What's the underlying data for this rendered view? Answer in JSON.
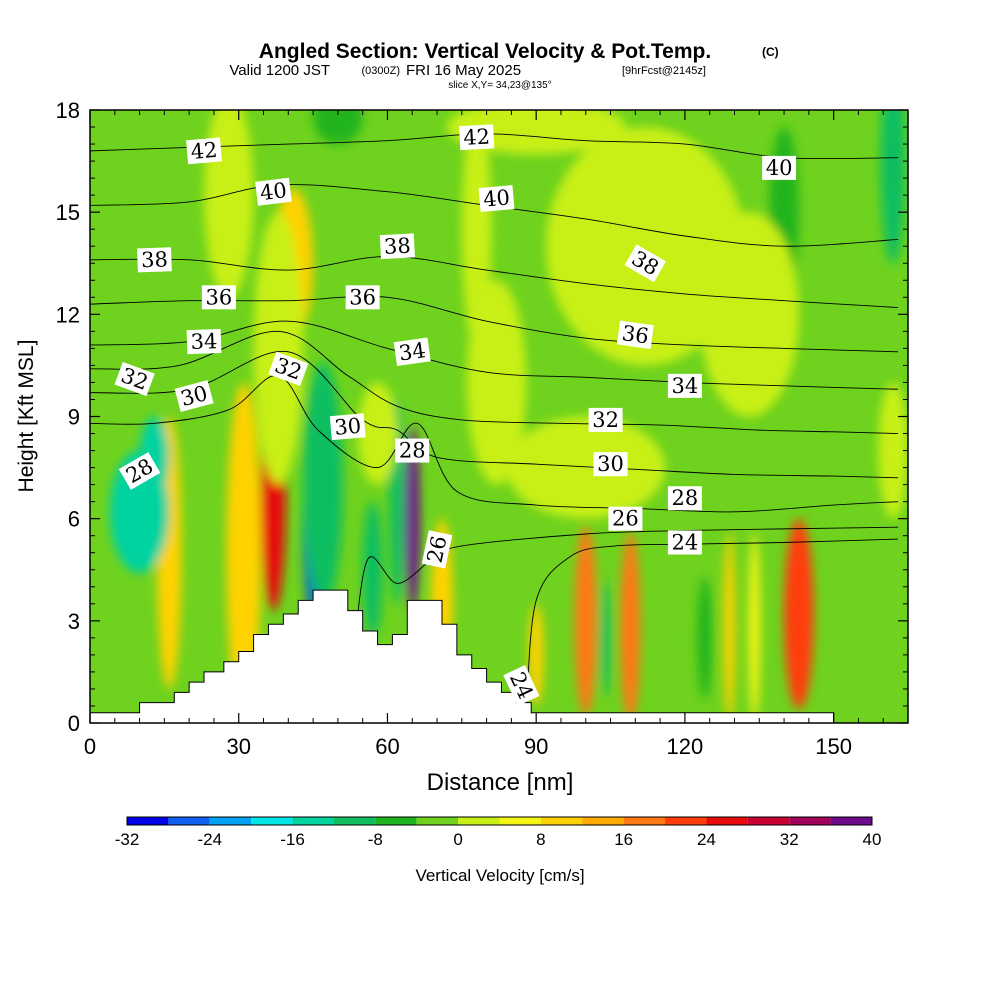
{
  "header": {
    "title": "Angled Section: Vertical Velocity & Pot.Temp.",
    "title_mark": "(C)",
    "subtitle_lead": "Valid 1200 JST",
    "subtitle_zulu": "(0300Z)",
    "subtitle_date": "FRI 16 May 2025",
    "subtitle_fcst": "[9hrFcst@2145z]",
    "slice": "slice X,Y= 34,23@135°"
  },
  "chart_data": {
    "type": "heatmap",
    "title": "Angled Section: Vertical Velocity & Pot.Temp.",
    "xlabel": "Distance [nm]",
    "ylabel": "Height [Kft MSL]",
    "xlim": [
      0,
      165
    ],
    "ylim": [
      0,
      18
    ],
    "x_ticks": [
      0,
      30,
      60,
      90,
      120,
      150
    ],
    "y_ticks": [
      0,
      3,
      6,
      9,
      12,
      15,
      18
    ],
    "colorbar": {
      "label": "Vertical Velocity [cm/s]",
      "ticks": [
        -32,
        -24,
        -16,
        -8,
        0,
        8,
        16,
        24,
        32,
        40
      ],
      "levels": [
        -32,
        -28,
        -24,
        -20,
        -16,
        -12,
        -8,
        -4,
        0,
        4,
        8,
        12,
        16,
        20,
        24,
        28,
        32,
        36,
        40
      ],
      "colors": [
        "#0000e6",
        "#1060f0",
        "#00a0f5",
        "#00e6e6",
        "#00d2a0",
        "#10be60",
        "#20b41e",
        "#6ed21e",
        "#c8f014",
        "#f5f514",
        "#ffd200",
        "#ffaa00",
        "#ff7814",
        "#ff3c0a",
        "#e60a0a",
        "#c80032",
        "#a0005a",
        "#6e0a8c"
      ]
    },
    "base_velocity": -2,
    "cells": [
      {
        "x": 37,
        "y": 6.5,
        "rx": 2.5,
        "ry": 3.2,
        "v": 27
      },
      {
        "x": 31,
        "y": 5.0,
        "rx": 3.5,
        "ry": 5.0,
        "v": 8
      },
      {
        "x": 16,
        "y": 5.0,
        "rx": 2.5,
        "ry": 4.0,
        "v": 8
      },
      {
        "x": 45,
        "y": 6.0,
        "rx": 2.0,
        "ry": 2.7,
        "v": -34
      },
      {
        "x": 47,
        "y": 7.0,
        "rx": 4.0,
        "ry": 3.6,
        "v": -12
      },
      {
        "x": 65,
        "y": 6.0,
        "rx": 1.5,
        "ry": 2.7,
        "v": 36
      },
      {
        "x": 62,
        "y": 6.5,
        "rx": 1.6,
        "ry": 3.0,
        "v": -11
      },
      {
        "x": 57,
        "y": 4.5,
        "rx": 2.0,
        "ry": 2.0,
        "v": -9
      },
      {
        "x": 71,
        "y": 3.5,
        "rx": 2.2,
        "ry": 2.5,
        "v": 8
      },
      {
        "x": 100,
        "y": 3.0,
        "rx": 2.2,
        "ry": 2.8,
        "v": 17
      },
      {
        "x": 109,
        "y": 2.8,
        "rx": 2.0,
        "ry": 2.8,
        "v": 16
      },
      {
        "x": 104,
        "y": 2.5,
        "rx": 1.0,
        "ry": 1.7,
        "v": -10
      },
      {
        "x": 90,
        "y": 2.0,
        "rx": 1.5,
        "ry": 1.5,
        "v": 8
      },
      {
        "x": 129,
        "y": 2.8,
        "rx": 1.2,
        "ry": 2.8,
        "v": 8
      },
      {
        "x": 134,
        "y": 2.8,
        "rx": 1.2,
        "ry": 2.8,
        "v": 7
      },
      {
        "x": 143,
        "y": 3.2,
        "rx": 3.0,
        "ry": 2.8,
        "v": 23
      },
      {
        "x": 124,
        "y": 2.5,
        "rx": 1.5,
        "ry": 1.8,
        "v": -8
      },
      {
        "x": 10,
        "y": 6.2,
        "rx": 6.0,
        "ry": 1.8,
        "v": -13
      },
      {
        "x": 13,
        "y": 7.8,
        "rx": 3.0,
        "ry": 1.2,
        "v": -14
      },
      {
        "x": 41,
        "y": 13.5,
        "rx": 4.0,
        "ry": 2.2,
        "v": 9
      },
      {
        "x": 38,
        "y": 11.0,
        "rx": 5.0,
        "ry": 4.0,
        "v": 3
      },
      {
        "x": 58,
        "y": 8.5,
        "rx": 4.0,
        "ry": 1.5,
        "v": 3
      },
      {
        "x": 82,
        "y": 10.0,
        "rx": 6.0,
        "ry": 3.0,
        "v": 3
      },
      {
        "x": 78,
        "y": 14.5,
        "rx": 3.0,
        "ry": 3.5,
        "v": 3
      },
      {
        "x": 112,
        "y": 14.0,
        "rx": 20.0,
        "ry": 3.5,
        "v": 2
      },
      {
        "x": 140,
        "y": 15.0,
        "rx": 3.0,
        "ry": 2.5,
        "v": -8
      },
      {
        "x": 133,
        "y": 12.0,
        "rx": 10.0,
        "ry": 3.0,
        "v": 2
      },
      {
        "x": 100,
        "y": 7.5,
        "rx": 16.0,
        "ry": 1.5,
        "v": 2
      },
      {
        "x": 90,
        "y": 17.5,
        "rx": 18.0,
        "ry": 0.8,
        "v": 0
      },
      {
        "x": 162,
        "y": 16.5,
        "rx": 2.5,
        "ry": 3.0,
        "v": -10
      },
      {
        "x": 50,
        "y": 17.8,
        "rx": 5.0,
        "ry": 0.8,
        "v": -8
      },
      {
        "x": 28,
        "y": 15.5,
        "rx": 5.0,
        "ry": 3.0,
        "v": 1
      },
      {
        "x": 162,
        "y": 8.0,
        "rx": 3.0,
        "ry": 2.0,
        "v": 3
      }
    ],
    "isentropes": [
      {
        "theta": 24,
        "points": [
          [
            88,
            0.3
          ],
          [
            90,
            3.6
          ],
          [
            97,
            4.9
          ],
          [
            106,
            5.2
          ],
          [
            120,
            5.25
          ],
          [
            140,
            5.3
          ],
          [
            163,
            5.4
          ]
        ]
      },
      {
        "theta": 26,
        "points": [
          [
            53,
            1.8
          ],
          [
            56,
            4.8
          ],
          [
            62,
            4.1
          ],
          [
            69,
            4.8
          ],
          [
            75,
            5.2
          ],
          [
            100,
            5.55
          ],
          [
            120,
            5.65
          ],
          [
            140,
            5.7
          ],
          [
            163,
            5.75
          ]
        ]
      },
      {
        "theta": 28,
        "points": [
          [
            0,
            8.8
          ],
          [
            13,
            8.8
          ],
          [
            28,
            9.2
          ],
          [
            38,
            10.2
          ],
          [
            46,
            8.6
          ],
          [
            58,
            7.5
          ],
          [
            66,
            8.8
          ],
          [
            74,
            6.8
          ],
          [
            90,
            6.4
          ],
          [
            110,
            6.3
          ],
          [
            130,
            6.2
          ],
          [
            150,
            6.4
          ],
          [
            163,
            6.5
          ]
        ]
      },
      {
        "theta": 30,
        "points": [
          [
            0,
            9.7
          ],
          [
            20,
            9.8
          ],
          [
            40,
            10.9
          ],
          [
            55,
            8.9
          ],
          [
            62,
            8.6
          ],
          [
            70,
            7.8
          ],
          [
            90,
            7.6
          ],
          [
            110,
            7.45
          ],
          [
            130,
            7.3
          ],
          [
            150,
            7.25
          ],
          [
            163,
            7.2
          ]
        ]
      },
      {
        "theta": 32,
        "points": [
          [
            0,
            10.4
          ],
          [
            18,
            10.5
          ],
          [
            38,
            11.5
          ],
          [
            52,
            10.2
          ],
          [
            62,
            9.3
          ],
          [
            75,
            8.9
          ],
          [
            95,
            8.8
          ],
          [
            115,
            8.75
          ],
          [
            135,
            8.6
          ],
          [
            150,
            8.55
          ],
          [
            163,
            8.5
          ]
        ]
      },
      {
        "theta": 34,
        "points": [
          [
            0,
            11.1
          ],
          [
            20,
            11.2
          ],
          [
            40,
            11.8
          ],
          [
            60,
            11.0
          ],
          [
            80,
            10.3
          ],
          [
            100,
            10.15
          ],
          [
            120,
            10.0
          ],
          [
            140,
            9.9
          ],
          [
            163,
            9.8
          ]
        ]
      },
      {
        "theta": 36,
        "points": [
          [
            0,
            12.3
          ],
          [
            20,
            12.4
          ],
          [
            40,
            12.4
          ],
          [
            60,
            12.5
          ],
          [
            80,
            11.8
          ],
          [
            100,
            11.3
          ],
          [
            120,
            11.1
          ],
          [
            140,
            11.0
          ],
          [
            163,
            10.9
          ]
        ]
      },
      {
        "theta": 38,
        "points": [
          [
            0,
            13.6
          ],
          [
            20,
            13.6
          ],
          [
            40,
            13.3
          ],
          [
            60,
            13.7
          ],
          [
            80,
            13.3
          ],
          [
            100,
            12.9
          ],
          [
            120,
            12.6
          ],
          [
            140,
            12.4
          ],
          [
            163,
            12.2
          ]
        ]
      },
      {
        "theta": 40,
        "points": [
          [
            0,
            15.2
          ],
          [
            20,
            15.3
          ],
          [
            38,
            15.8
          ],
          [
            60,
            15.6
          ],
          [
            80,
            15.2
          ],
          [
            100,
            14.8
          ],
          [
            120,
            14.3
          ],
          [
            140,
            14.0
          ],
          [
            163,
            14.2
          ]
        ]
      },
      {
        "theta": 42,
        "points": [
          [
            0,
            16.8
          ],
          [
            20,
            16.9
          ],
          [
            40,
            17.0
          ],
          [
            60,
            17.1
          ],
          [
            80,
            17.3
          ],
          [
            100,
            17.1
          ],
          [
            120,
            17.0
          ],
          [
            140,
            16.6
          ],
          [
            163,
            16.6
          ]
        ]
      }
    ],
    "terrain": [
      [
        0,
        0.3
      ],
      [
        5,
        0.3
      ],
      [
        10,
        0.3
      ],
      [
        10,
        0.6
      ],
      [
        17,
        0.6
      ],
      [
        17,
        0.9
      ],
      [
        20,
        0.9
      ],
      [
        20,
        1.2
      ],
      [
        23,
        1.2
      ],
      [
        23,
        1.5
      ],
      [
        27,
        1.5
      ],
      [
        27,
        1.8
      ],
      [
        30,
        1.8
      ],
      [
        30,
        2.1
      ],
      [
        33,
        2.1
      ],
      [
        33,
        2.6
      ],
      [
        36,
        2.6
      ],
      [
        36,
        2.9
      ],
      [
        39,
        2.9
      ],
      [
        39,
        3.2
      ],
      [
        42,
        3.2
      ],
      [
        42,
        3.6
      ],
      [
        45,
        3.6
      ],
      [
        45,
        3.9
      ],
      [
        52,
        3.9
      ],
      [
        52,
        3.3
      ],
      [
        55,
        3.3
      ],
      [
        55,
        2.7
      ],
      [
        58,
        2.7
      ],
      [
        58,
        2.3
      ],
      [
        61,
        2.3
      ],
      [
        61,
        2.6
      ],
      [
        64,
        2.6
      ],
      [
        64,
        3.6
      ],
      [
        71,
        3.6
      ],
      [
        71,
        2.9
      ],
      [
        74,
        2.9
      ],
      [
        74,
        2.0
      ],
      [
        77,
        2.0
      ],
      [
        77,
        1.6
      ],
      [
        80,
        1.6
      ],
      [
        80,
        1.2
      ],
      [
        83,
        1.2
      ],
      [
        83,
        0.9
      ],
      [
        86,
        0.9
      ],
      [
        86,
        0.6
      ],
      [
        89,
        0.6
      ],
      [
        89,
        0.3
      ],
      [
        150,
        0.3
      ],
      [
        150,
        0.0
      ],
      [
        165,
        0.0
      ]
    ],
    "contour_labels": [
      {
        "text": "42",
        "x": 23,
        "y": 16.8,
        "rot": -5
      },
      {
        "text": "42",
        "x": 78,
        "y": 17.2,
        "rot": -3
      },
      {
        "text": "40",
        "x": 139,
        "y": 16.3,
        "rot": 0
      },
      {
        "text": "40",
        "x": 37,
        "y": 15.6,
        "rot": -7
      },
      {
        "text": "40",
        "x": 82,
        "y": 15.4,
        "rot": -5
      },
      {
        "text": "38",
        "x": 13,
        "y": 13.6,
        "rot": -2
      },
      {
        "text": "38",
        "x": 62,
        "y": 14.0,
        "rot": -3
      },
      {
        "text": "38",
        "x": 112,
        "y": 13.5,
        "rot": 30
      },
      {
        "text": "36",
        "x": 26,
        "y": 12.5,
        "rot": 0
      },
      {
        "text": "36",
        "x": 55,
        "y": 12.5,
        "rot": 0
      },
      {
        "text": "36",
        "x": 110,
        "y": 11.4,
        "rot": 8
      },
      {
        "text": "34",
        "x": 23,
        "y": 11.2,
        "rot": -2
      },
      {
        "text": "34",
        "x": 65,
        "y": 10.9,
        "rot": -8
      },
      {
        "text": "34",
        "x": 120,
        "y": 9.9,
        "rot": 0
      },
      {
        "text": "32",
        "x": 9,
        "y": 10.1,
        "rot": 20
      },
      {
        "text": "32",
        "x": 40,
        "y": 10.4,
        "rot": 20
      },
      {
        "text": "32",
        "x": 104,
        "y": 8.9,
        "rot": 0
      },
      {
        "text": "30",
        "x": 21,
        "y": 9.6,
        "rot": -15
      },
      {
        "text": "30",
        "x": 52,
        "y": 8.7,
        "rot": -5
      },
      {
        "text": "30",
        "x": 105,
        "y": 7.6,
        "rot": 0
      },
      {
        "text": "28",
        "x": 10,
        "y": 7.4,
        "rot": -30
      },
      {
        "text": "28",
        "x": 65,
        "y": 8.0,
        "rot": 0
      },
      {
        "text": "28",
        "x": 120,
        "y": 6.6,
        "rot": 0
      },
      {
        "text": "26",
        "x": 70,
        "y": 5.1,
        "rot": -78
      },
      {
        "text": "26",
        "x": 108,
        "y": 6.0,
        "rot": 0
      },
      {
        "text": "24",
        "x": 120,
        "y": 5.3,
        "rot": 0
      },
      {
        "text": "24",
        "x": 87,
        "y": 1.1,
        "rot": 65
      }
    ]
  }
}
